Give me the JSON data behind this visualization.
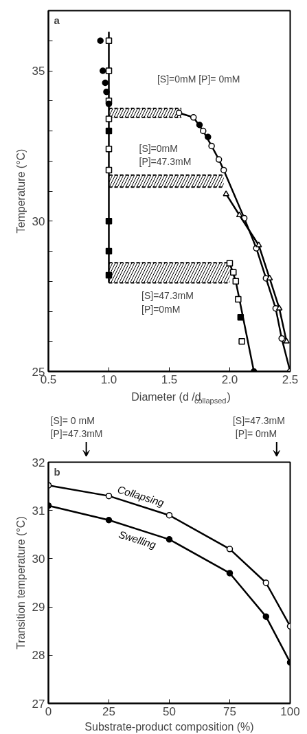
{
  "chart_data": [
    {
      "type": "scatter",
      "xlabel": "Diameter (d /d$_{collapsed}$)",
      "ylabel": "Temperature (°C)",
      "xlim": [
        0.5,
        2.5
      ],
      "ylim": [
        25,
        37
      ],
      "xticks": [
        0.5,
        {
          "value": 1.0,
          "label": "1.0"
        },
        1.5,
        {
          "value": 2.0,
          "label": "2.0"
        },
        2.5
      ],
      "yticks": [
        25,
        {
          "value": 26,
          "label": null
        },
        {
          "value": 27,
          "label": null
        },
        {
          "value": 28,
          "label": null
        },
        {
          "value": 29,
          "label": null
        },
        30,
        {
          "value": 31,
          "label": null
        },
        {
          "value": 32,
          "label": null
        },
        {
          "value": 33,
          "label": null
        },
        {
          "value": 34,
          "label": null
        },
        35,
        {
          "value": 36,
          "label": null
        }
      ],
      "grid": false,
      "series": [
        {
          "type": "area",
          "line_style": "dashed",
          "color": "#000000",
          "x": [
            1.0,
            1.6
          ],
          "values": [
            33.75,
            33.75
          ]
        },
        {
          "type": "line",
          "line_style": "dashed",
          "color": "#000000",
          "marker": "none",
          "x": [
            1.0,
            1.6
          ],
          "values": [
            33.45,
            33.45
          ]
        },
        {
          "type": "area",
          "line_style": "dashed",
          "color": "#000000",
          "x": [
            1.0,
            1.95
          ],
          "values": [
            31.53,
            31.53
          ]
        },
        {
          "type": "line",
          "line_style": "dashed",
          "color": "#000000",
          "marker": "none",
          "x": [
            1.0,
            1.95
          ],
          "values": [
            31.13,
            31.13
          ]
        },
        {
          "type": "area",
          "line_style": "dashed",
          "color": "#000000",
          "x": [
            1.0,
            2.0
          ],
          "values": [
            28.62,
            28.62
          ]
        },
        {
          "type": "line",
          "line_style": "dashed",
          "color": "#000000",
          "marker": "none",
          "x": [
            1.0,
            2.0
          ],
          "values": [
            27.95,
            27.95
          ]
        },
        {
          "type": "line",
          "color": "#000000",
          "marker": "none",
          "x": [
            1.0,
            1.0
          ],
          "values": [
            36.3,
            27.95
          ]
        },
        {
          "type": "line",
          "color": "#000000",
          "marker": "circle",
          "colors": [
            "#ffffff",
            "#ffffff",
            "#ffffff",
            "#ffffff",
            "#ffffff",
            "#ffffff",
            "#ffffff",
            "#ffffff",
            "#ffffff",
            "#ffffff",
            "#ffffff",
            "#ffffff"
          ],
          "x": [
            1.58,
            1.7,
            1.78,
            1.85,
            1.91,
            1.95,
            2.12,
            2.22,
            2.3,
            2.38,
            2.43,
            2.5
          ],
          "values": [
            33.6,
            33.45,
            33.0,
            32.5,
            32.05,
            31.7,
            30.1,
            29.1,
            28.1,
            27.1,
            26.1,
            25.0
          ]
        },
        {
          "type": "line",
          "color": "#000000",
          "marker": "triangle",
          "colors": [
            "#ffffff",
            "#ffffff",
            "#ffffff",
            "#ffffff",
            "#ffffff",
            "#ffffff"
          ],
          "x": [
            1.97,
            2.08,
            2.24,
            2.33,
            2.41,
            2.47
          ],
          "values": [
            30.9,
            30.2,
            29.2,
            28.1,
            27.1,
            26.0
          ]
        },
        {
          "type": "line",
          "color": "#000000",
          "marker": "none",
          "x": [
            2.0,
            2.05,
            2.1,
            2.15,
            2.2
          ],
          "values": [
            28.6,
            28.0,
            27.0,
            26.0,
            25.0
          ]
        },
        {
          "type": "scatter",
          "color": "#000000",
          "colors": [
            "#ffffff",
            "#ffffff",
            "#ffffff",
            "#ffffff",
            "#ffffff",
            "#ffffff",
            "#ffffff",
            "#ffffff",
            "#ffffff",
            "#ffffff",
            "#ffffff"
          ],
          "marker": "square",
          "x": [
            1.0,
            1.0,
            1.0,
            1.0,
            1.0,
            1.0,
            2.0,
            2.03,
            2.05,
            2.07,
            2.1
          ],
          "values": [
            36.0,
            35.0,
            34.0,
            33.4,
            32.4,
            31.7,
            28.6,
            28.3,
            28.0,
            27.4,
            26.0
          ]
        },
        {
          "type": "scatter",
          "color": "#000000",
          "marker": "square",
          "x": [
            1.0,
            1.0,
            1.0,
            1.0,
            2.09
          ],
          "values": [
            33.0,
            30.0,
            29.0,
            28.2,
            26.8
          ]
        },
        {
          "type": "scatter",
          "color": "#000000",
          "marker": "circle",
          "x": [
            0.93,
            0.95,
            0.97,
            0.98,
            1.0,
            1.75,
            1.82,
            2.2
          ],
          "values": [
            36.0,
            35.0,
            34.6,
            34.3,
            33.9,
            33.2,
            32.8,
            25.0
          ]
        }
      ],
      "annotations": [
        "a",
        "[S]=0mM [P]= 0mM",
        "[S]=0mM\n[P]=47.3mM",
        "[S]=47.3mM\n[P]=0mM"
      ]
    },
    {
      "type": "line",
      "xlabel": "Substrate-product composition (%)",
      "ylabel": "Transition temperature (°C)",
      "x": [
        0,
        25,
        50,
        75,
        90,
        100
      ],
      "xlim": [
        0,
        100
      ],
      "ylim": [
        27,
        32
      ],
      "xticks": [
        0,
        25,
        50,
        75,
        100
      ],
      "yticks": [
        27,
        28,
        29,
        30,
        31,
        32
      ],
      "grid": false,
      "series": [
        {
          "name": "Collapsing",
          "color": "#000000",
          "marker": "circle",
          "colors": [
            "#ffffff",
            "#ffffff",
            "#ffffff",
            "#ffffff",
            "#ffffff",
            "#ffffff"
          ],
          "values": [
            31.52,
            31.3,
            30.9,
            30.2,
            29.5,
            28.6
          ]
        },
        {
          "name": "Swelling",
          "color": "#000000",
          "marker": "circle",
          "values": [
            31.1,
            30.8,
            30.4,
            29.7,
            28.8,
            27.85
          ]
        }
      ],
      "annotations": [
        "b",
        "[S]=   0 mM\n[P]=47.3mM",
        "[S]=47.3mM\n[P]=    0mM"
      ]
    }
  ]
}
